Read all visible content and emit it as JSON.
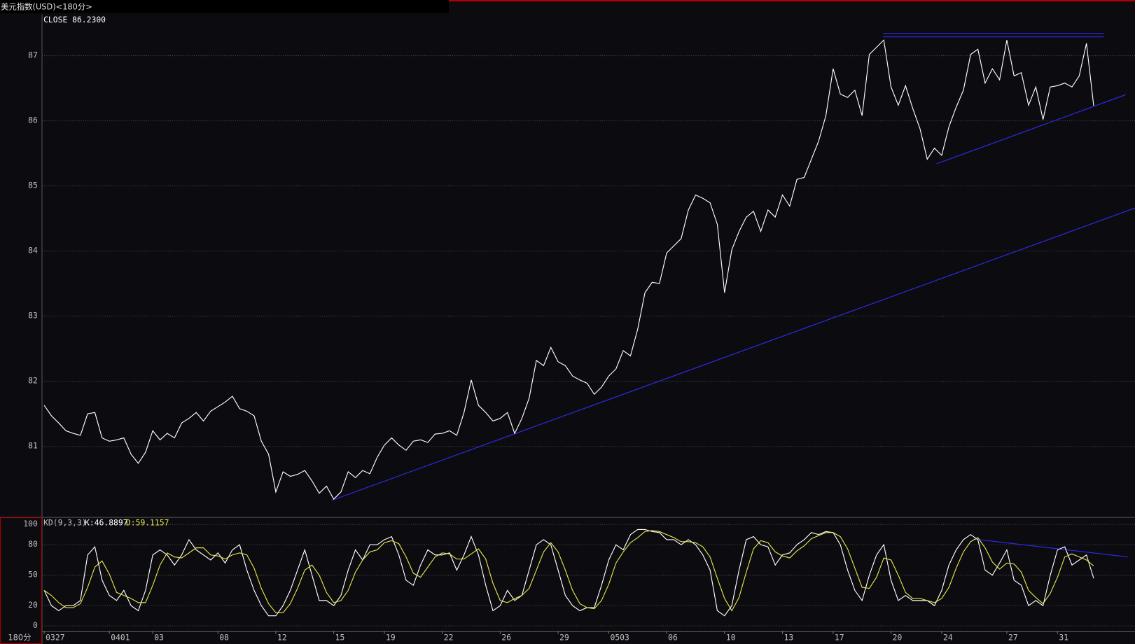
{
  "chart_data": [
    {
      "type": "line",
      "title": "美元指数(USD)<180分>",
      "xlim": [
        -0.3,
        150.7
      ],
      "ylim": [
        79.91,
        87.633
      ],
      "yticks": [
        81,
        82,
        83,
        84,
        85,
        86,
        87
      ],
      "grid": true,
      "series": [
        {
          "label": "CLOSE 86.2300",
          "color": "#ffffff",
          "values": [
            81.63,
            81.47,
            81.36,
            81.24,
            81.2,
            81.17,
            81.5,
            81.52,
            81.13,
            81.08,
            81.1,
            81.13,
            80.88,
            80.74,
            80.91,
            81.24,
            81.1,
            81.2,
            81.13,
            81.36,
            81.43,
            81.52,
            81.39,
            81.54,
            81.61,
            81.68,
            81.77,
            81.58,
            81.54,
            81.47,
            81.08,
            80.88,
            80.3,
            80.61,
            80.54,
            80.57,
            80.63,
            80.47,
            80.28,
            80.39,
            80.19,
            80.3,
            80.61,
            80.52,
            80.63,
            80.58,
            80.83,
            81.02,
            81.13,
            81.02,
            80.94,
            81.08,
            81.1,
            81.06,
            81.19,
            81.2,
            81.24,
            81.17,
            81.52,
            82.02,
            81.63,
            81.52,
            81.39,
            81.43,
            81.52,
            81.2,
            81.43,
            81.74,
            82.32,
            82.24,
            82.52,
            82.3,
            82.24,
            82.08,
            82.02,
            81.97,
            81.8,
            81.91,
            82.08,
            82.19,
            82.47,
            82.39,
            82.8,
            83.36,
            83.52,
            83.5,
            83.97,
            84.08,
            84.19,
            84.63,
            84.86,
            84.81,
            84.74,
            84.41,
            83.36,
            84.02,
            84.3,
            84.52,
            84.61,
            84.3,
            84.63,
            84.52,
            84.86,
            84.69,
            85.1,
            85.13,
            85.41,
            85.69,
            86.08,
            86.8,
            86.41,
            86.36,
            86.47,
            86.08,
            87.02,
            87.13,
            87.24,
            86.52,
            86.24,
            86.54,
            86.19,
            85.88,
            85.41,
            85.58,
            85.47,
            85.91,
            86.21,
            86.47,
            87.02,
            87.1,
            86.58,
            86.8,
            86.63,
            87.24,
            86.69,
            86.74,
            86.24,
            86.52,
            86.02,
            86.52,
            86.54,
            86.58,
            86.52,
            86.69,
            87.19,
            86.23
          ]
        }
      ],
      "trendlines": [
        {
          "color": "#2a2ae0",
          "x": [
            115.9,
            146.4
          ],
          "y": [
            87.34,
            87.34
          ]
        },
        {
          "color": "#2a2ae0",
          "x": [
            115.9,
            146.4
          ],
          "y": [
            87.29,
            87.29
          ]
        },
        {
          "color": "#2a2ae0",
          "x": [
            39.7,
            150.7
          ],
          "y": [
            80.17,
            84.66
          ]
        },
        {
          "color": "#2a2ae0",
          "x": [
            123.3,
            149.4
          ],
          "y": [
            85.34,
            86.4
          ]
        }
      ]
    },
    {
      "type": "line",
      "title": "KD(9,3,3)",
      "xlabel": "180分",
      "xlim": [
        -0.3,
        150.7
      ],
      "ylim": [
        -5,
        107
      ],
      "yticks": [
        0,
        20,
        50,
        80,
        100
      ],
      "grid": true,
      "xticks": [
        {
          "value": 0,
          "label": "0327"
        },
        {
          "value": 9,
          "label": "0401"
        },
        {
          "value": 15,
          "label": "03"
        },
        {
          "value": 24,
          "label": "08"
        },
        {
          "value": 32,
          "label": "12"
        },
        {
          "value": 40,
          "label": "15"
        },
        {
          "value": 47,
          "label": "19"
        },
        {
          "value": 55,
          "label": "22"
        },
        {
          "value": 63,
          "label": "26"
        },
        {
          "value": 71,
          "label": "29"
        },
        {
          "value": 78,
          "label": "0503"
        },
        {
          "value": 86,
          "label": "06"
        },
        {
          "value": 94,
          "label": "10"
        },
        {
          "value": 102,
          "label": "13"
        },
        {
          "value": 109,
          "label": "17"
        },
        {
          "value": 117,
          "label": "20"
        },
        {
          "value": 124,
          "label": "24"
        },
        {
          "value": 133,
          "label": "27"
        },
        {
          "value": 140,
          "label": "31"
        }
      ],
      "series": [
        {
          "label": "K:46.8897",
          "color": "#ffffff",
          "values": [
            35,
            20,
            15,
            20,
            20,
            25,
            70,
            78,
            45,
            30,
            25,
            35,
            20,
            15,
            35,
            70,
            75,
            70,
            60,
            70,
            85,
            75,
            70,
            65,
            72,
            62,
            75,
            80,
            55,
            35,
            20,
            10,
            10,
            20,
            35,
            55,
            75,
            50,
            25,
            25,
            20,
            30,
            55,
            75,
            65,
            80,
            80,
            85,
            88,
            70,
            45,
            40,
            60,
            75,
            70,
            70,
            72,
            55,
            70,
            88,
            70,
            40,
            15,
            20,
            35,
            25,
            30,
            55,
            80,
            85,
            80,
            55,
            30,
            20,
            15,
            18,
            18,
            40,
            65,
            80,
            75,
            90,
            95,
            95,
            93,
            92,
            85,
            85,
            80,
            85,
            80,
            70,
            55,
            15,
            10,
            20,
            55,
            85,
            88,
            80,
            78,
            60,
            70,
            72,
            80,
            85,
            92,
            90,
            93,
            92,
            80,
            55,
            35,
            25,
            50,
            70,
            80,
            45,
            25,
            30,
            25,
            25,
            25,
            20,
            35,
            60,
            75,
            85,
            90,
            85,
            55,
            50,
            62,
            75,
            45,
            40,
            20,
            25,
            20,
            50,
            75,
            78,
            60,
            65,
            70,
            46.8897
          ]
        },
        {
          "label": "D:59.1157",
          "color": "#e6e64a",
          "values": [
            35,
            30,
            23,
            18,
            18,
            22,
            38,
            58,
            64,
            51,
            33,
            30,
            27,
            23,
            23,
            40,
            60,
            72,
            68,
            67,
            72,
            77,
            77,
            70,
            69,
            66,
            70,
            72,
            70,
            57,
            37,
            22,
            13,
            13,
            22,
            37,
            55,
            60,
            50,
            33,
            23,
            25,
            35,
            53,
            65,
            73,
            75,
            82,
            84,
            81,
            68,
            52,
            48,
            58,
            68,
            72,
            71,
            66,
            66,
            71,
            76,
            66,
            42,
            25,
            23,
            27,
            30,
            37,
            55,
            73,
            82,
            73,
            55,
            35,
            22,
            18,
            17,
            25,
            41,
            62,
            73,
            82,
            87,
            93,
            94,
            93,
            90,
            87,
            83,
            83,
            82,
            78,
            68,
            47,
            27,
            15,
            28,
            53,
            76,
            84,
            82,
            73,
            69,
            67,
            74,
            79,
            86,
            89,
            92,
            92,
            88,
            76,
            57,
            38,
            37,
            48,
            67,
            65,
            50,
            33,
            27,
            27,
            25,
            23,
            27,
            38,
            57,
            73,
            83,
            87,
            77,
            63,
            56,
            62,
            61,
            53,
            35,
            28,
            22,
            32,
            48,
            68,
            71,
            68,
            65,
            59.1157
          ]
        }
      ],
      "trendlines": [
        {
          "color": "#2a2ae0",
          "x": [
            128.4,
            149.7
          ],
          "y": [
            85.7,
            68
          ]
        }
      ]
    }
  ]
}
